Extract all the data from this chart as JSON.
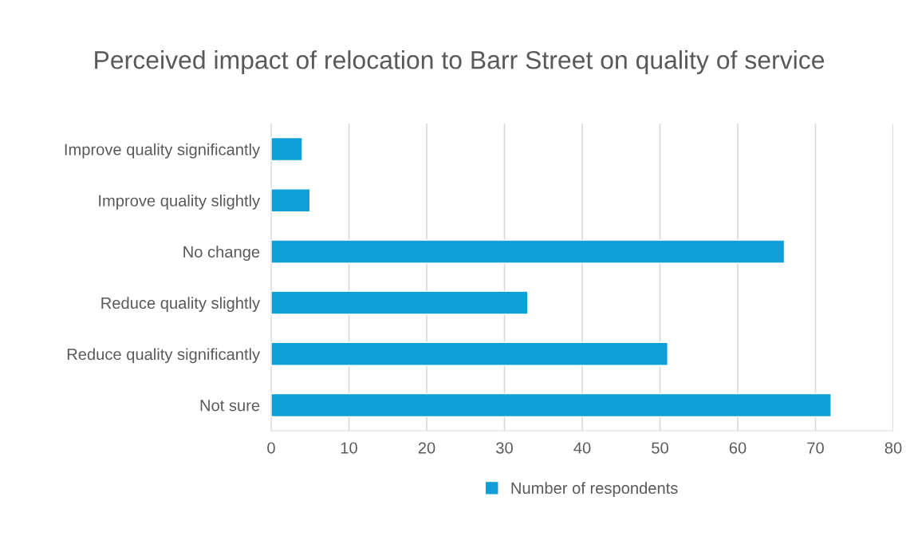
{
  "chart_data": {
    "type": "bar",
    "orientation": "horizontal",
    "title": "Perceived impact of relocation to Barr Street on quality of service",
    "categories": [
      "Improve quality significantly",
      "Improve quality slightly",
      "No change",
      "Reduce quality slightly",
      "Reduce quality significantly",
      "Not sure"
    ],
    "series": [
      {
        "name": "Number of respondents",
        "color": "#0f9ed5",
        "values": [
          4,
          5,
          66,
          33,
          51,
          72
        ]
      }
    ],
    "xlim": [
      0,
      80
    ],
    "xticks": [
      0,
      10,
      20,
      30,
      40,
      50,
      60,
      70,
      80
    ],
    "grid": "x",
    "legend": "bottom"
  }
}
